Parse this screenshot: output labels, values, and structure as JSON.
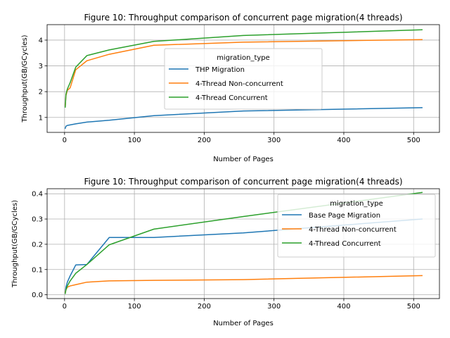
{
  "chart_data": [
    {
      "type": "line",
      "title": "Figure 10: Throughput comparison of concurrent page migration(4 threads)",
      "xlabel": "Number of Pages",
      "ylabel": "Throughput(GB/GCycles)",
      "xlim": [
        -25,
        537
      ],
      "ylim": [
        0.42,
        4.6
      ],
      "xticks": [
        0,
        100,
        200,
        300,
        400,
        500
      ],
      "yticks": [
        1,
        2,
        3,
        4
      ],
      "grid": true,
      "legend": {
        "title": "migration_type",
        "position": "center-right"
      },
      "series": [
        {
          "name": "THP Migration",
          "color": "#1f77b4",
          "x": [
            1,
            2,
            4,
            8,
            16,
            32,
            64,
            128,
            256,
            512
          ],
          "y": [
            0.58,
            0.66,
            0.69,
            0.71,
            0.75,
            0.82,
            0.89,
            1.07,
            1.25,
            1.38
          ]
        },
        {
          "name": "4-Thread Non-concurrent",
          "color": "#ff7f0e",
          "x": [
            1,
            2,
            4,
            8,
            16,
            32,
            64,
            128,
            256,
            512
          ],
          "y": [
            1.45,
            1.85,
            2.05,
            2.15,
            2.85,
            3.2,
            3.45,
            3.8,
            3.92,
            4.02
          ]
        },
        {
          "name": "4-Thread Concurrent",
          "color": "#2ca02c",
          "x": [
            1,
            2,
            4,
            8,
            16,
            32,
            64,
            128,
            256,
            512
          ],
          "y": [
            1.4,
            1.9,
            2.1,
            2.35,
            2.95,
            3.4,
            3.62,
            3.95,
            4.18,
            4.4
          ]
        }
      ]
    },
    {
      "type": "line",
      "title": "Figure 10: Throughput comparison of concurrent page migration(4 threads)",
      "xlabel": "Number of Pages",
      "ylabel": "Throughput(GB/GCycles)",
      "xlim": [
        -25,
        537
      ],
      "ylim": [
        -0.015,
        0.42
      ],
      "xticks": [
        0,
        100,
        200,
        300,
        400,
        500
      ],
      "yticks": [
        0.0,
        0.1,
        0.2,
        0.3,
        0.4
      ],
      "ytick_labels": [
        "0.0",
        "0.1",
        "0.2",
        "0.3",
        "0.4"
      ],
      "grid": true,
      "legend": {
        "title": "migration_type",
        "position": "upper-right"
      },
      "series": [
        {
          "name": "Base Page Migration",
          "color": "#1f77b4",
          "x": [
            1,
            2,
            4,
            8,
            16,
            32,
            64,
            128,
            256,
            512
          ],
          "y": [
            0.01,
            0.03,
            0.05,
            0.075,
            0.118,
            0.12,
            0.227,
            0.227,
            0.245,
            0.3
          ]
        },
        {
          "name": "4-Thread Non-concurrent",
          "color": "#ff7f0e",
          "x": [
            1,
            2,
            4,
            8,
            16,
            32,
            64,
            128,
            256,
            512
          ],
          "y": [
            0.01,
            0.02,
            0.03,
            0.035,
            0.04,
            0.05,
            0.055,
            0.057,
            0.06,
            0.076
          ]
        },
        {
          "name": "4-Thread Concurrent",
          "color": "#2ca02c",
          "x": [
            1,
            2,
            4,
            8,
            16,
            32,
            64,
            128,
            256,
            512
          ],
          "y": [
            0.005,
            0.02,
            0.035,
            0.055,
            0.085,
            0.12,
            0.198,
            0.26,
            0.31,
            0.405
          ]
        }
      ]
    }
  ]
}
